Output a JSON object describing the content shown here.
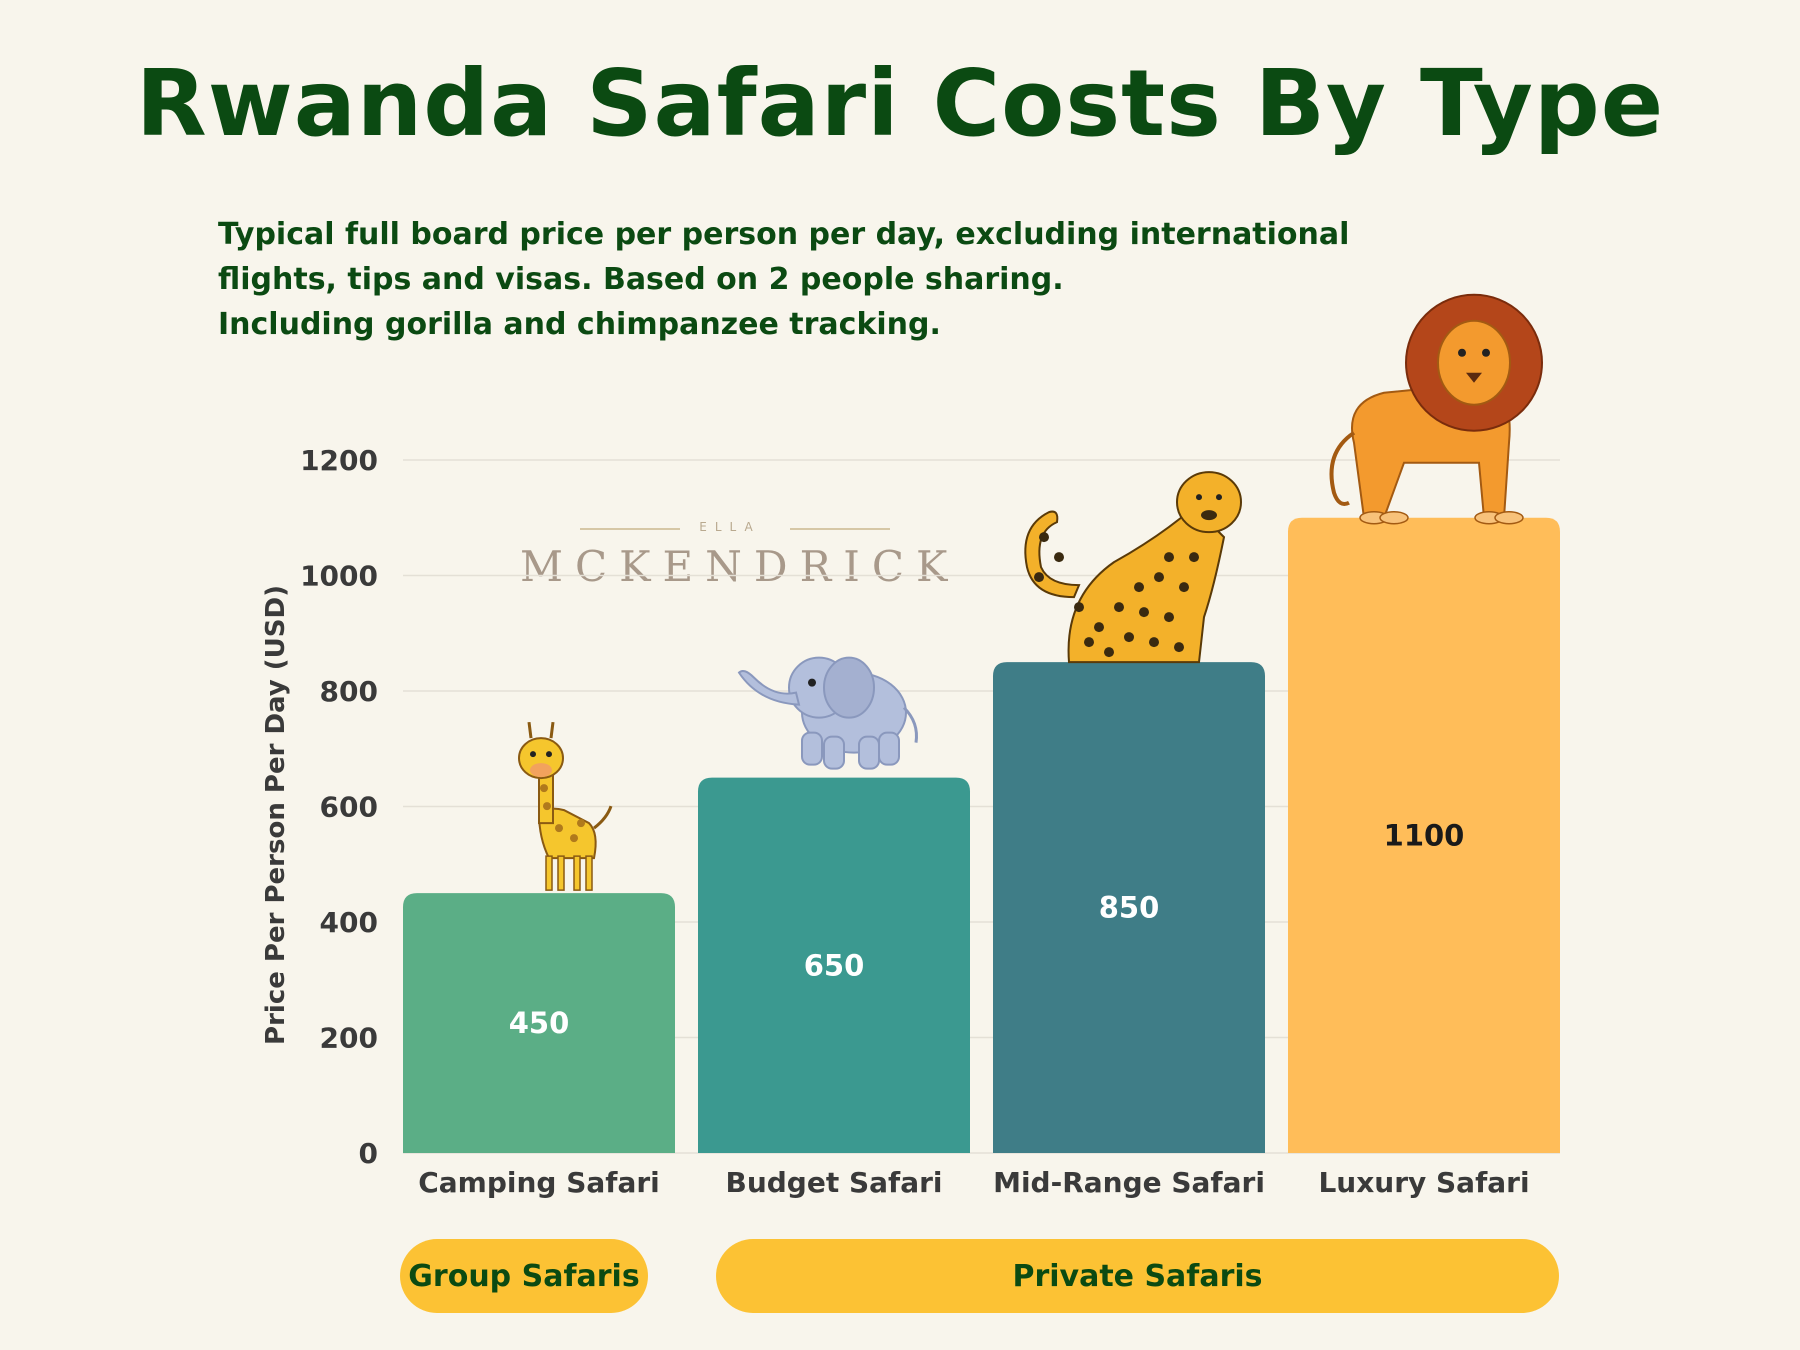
{
  "title": "Rwanda Safari Costs By Type",
  "subtitle_lines": [
    "Typical full board price per person per day, excluding international",
    "flights, tips and visas. Based on 2 people sharing.",
    "Including gorilla and chimpanzee tracking."
  ],
  "watermark": {
    "small": "ELLA",
    "big": "MCKENDRICK"
  },
  "chart_data": {
    "type": "bar",
    "categories": [
      "Camping Safari",
      "Budget Safari",
      "Mid-Range Safari",
      "Luxury Safari"
    ],
    "values": [
      450,
      650,
      850,
      1100
    ],
    "data_labels": [
      "450",
      "650",
      "850",
      "1100"
    ],
    "bar_colors": [
      "#5bae86",
      "#3b9990",
      "#3f7d87",
      "#ffbd59"
    ],
    "label_colors": [
      "#ffffff",
      "#ffffff",
      "#ffffff",
      "#1a1a1a"
    ],
    "ylabel": "Price Per Person Per Day (USD)",
    "xlabel": "",
    "ylim": [
      0,
      1200
    ],
    "yticks": [
      0,
      200,
      400,
      600,
      800,
      1000,
      1200
    ],
    "grid": true,
    "illustrations": [
      "giraffe",
      "elephant",
      "leopard",
      "lion"
    ]
  },
  "groups": [
    {
      "label": "Group Safaris"
    },
    {
      "label": "Private Safaris"
    }
  ],
  "colors": {
    "title": "#0b4a12",
    "background": "#f8f5ec",
    "pill": "#fcc234"
  }
}
